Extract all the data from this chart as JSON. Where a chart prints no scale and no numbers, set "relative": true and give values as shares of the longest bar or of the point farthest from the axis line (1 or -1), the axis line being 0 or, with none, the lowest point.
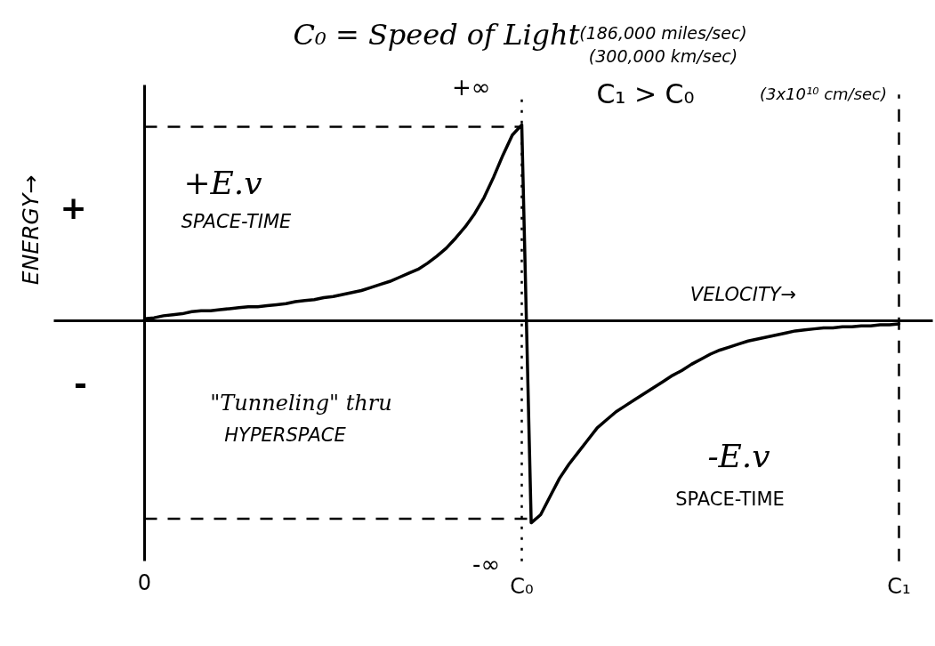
{
  "chart_data": {
    "type": "line",
    "title": "C₀ = Speed of Light",
    "xlabel": "VELOCITY→",
    "ylabel": "ENERGY→",
    "annotations": [
      "(186,000 miles/sec)",
      "(300,000 km/sec)",
      "(3x10¹⁰ cm/sec)",
      "C₁ > C₀",
      "+E.v",
      "SPACE-TIME",
      "-E.v",
      "SPACE-TIME",
      "\"Tunneling\" thru",
      "HYPERSPACE",
      "+",
      "-"
    ],
    "relative": true,
    "categories": [
      "0",
      null,
      null,
      null,
      null,
      null,
      null,
      null,
      null,
      null,
      null,
      null,
      null,
      null,
      null,
      null,
      null,
      null,
      null,
      null,
      null,
      null,
      null,
      null,
      null,
      null,
      null,
      null,
      null,
      null,
      null,
      null,
      null,
      null,
      null,
      null,
      null,
      null,
      null,
      null,
      "C₀",
      null,
      null,
      null,
      null,
      null,
      null,
      null,
      null,
      null,
      null,
      null,
      null,
      null,
      null,
      null,
      null,
      null,
      null,
      null,
      null,
      null,
      null,
      null,
      null,
      null,
      null,
      null,
      null,
      null,
      null,
      null,
      null,
      null,
      null,
      null,
      null,
      null,
      null,
      null,
      "C₁"
    ],
    "series": [
      {
        "color": "#000000",
        "values": [
          0.01,
          0.015,
          0.025,
          0.03,
          0.035,
          0.045,
          0.05,
          0.05,
          0.055,
          0.06,
          0.065,
          0.07,
          0.07,
          0.075,
          0.08,
          0.085,
          0.095,
          0.1,
          0.105,
          0.115,
          0.12,
          0.13,
          0.14,
          0.15,
          0.165,
          0.18,
          0.195,
          0.215,
          0.235,
          0.255,
          0.285,
          0.32,
          0.36,
          0.41,
          0.465,
          0.53,
          0.61,
          0.71,
          0.82,
          0.92,
          0.97,
          -1.0,
          -0.96,
          -0.87,
          -0.78,
          -0.71,
          -0.65,
          -0.59,
          -0.53,
          -0.49,
          -0.45,
          -0.42,
          -0.39,
          -0.36,
          -0.33,
          -0.3,
          -0.27,
          -0.245,
          -0.215,
          -0.19,
          -0.165,
          -0.145,
          -0.13,
          -0.115,
          -0.1,
          -0.09,
          -0.08,
          -0.07,
          -0.06,
          -0.05,
          -0.045,
          -0.04,
          -0.035,
          -0.035,
          -0.03,
          -0.03,
          -0.025,
          -0.025,
          -0.02,
          -0.02,
          -0.015
        ]
      }
    ],
    "ref_lines": [
      {
        "axis": "y",
        "value": 0.96,
        "label": "+∞",
        "line_style": "dashed"
      },
      {
        "axis": "y",
        "value": -0.98,
        "label": "-∞",
        "line_style": "dashed"
      },
      {
        "axis": "x",
        "value": "C₀",
        "line_style": "dotted"
      },
      {
        "axis": "x",
        "value": "C₁",
        "line_style": "dashed"
      }
    ]
  }
}
